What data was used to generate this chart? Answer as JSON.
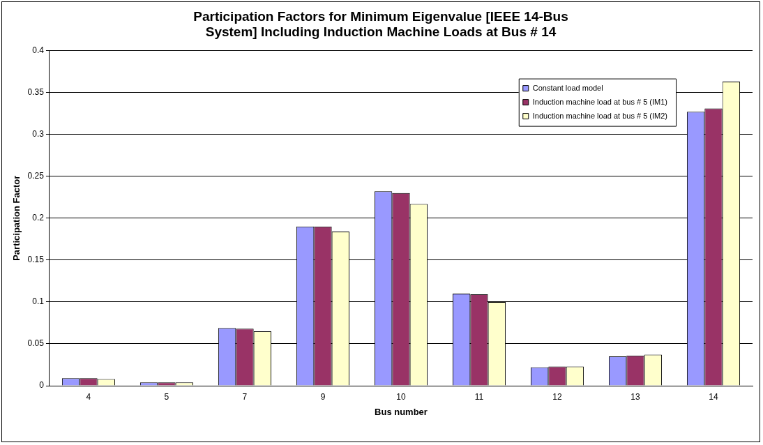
{
  "chart_data": {
    "type": "bar",
    "title": [
      "Participation Factors for Minimum Eigenvalue [IEEE 14-Bus",
      "System] Including Induction Machine Loads at Bus # 14"
    ],
    "xlabel": "Bus number",
    "ylabel": "Participation Factor",
    "categories": [
      "4",
      "5",
      "7",
      "9",
      "10",
      "11",
      "12",
      "13",
      "14"
    ],
    "series": [
      {
        "name": "Constant load model",
        "color": "#9999ff",
        "values": [
          0.009,
          0.004,
          0.069,
          0.19,
          0.232,
          0.11,
          0.022,
          0.035,
          0.327
        ]
      },
      {
        "name": "Induction machine load at bus # 5 (IM1)",
        "color": "#993366",
        "values": [
          0.009,
          0.004,
          0.068,
          0.19,
          0.23,
          0.109,
          0.023,
          0.036,
          0.331
        ]
      },
      {
        "name": "Induction machine load at bus # 5 (IM2)",
        "color": "#ffffcc",
        "values": [
          0.008,
          0.004,
          0.065,
          0.184,
          0.217,
          0.1,
          0.023,
          0.037,
          0.363
        ]
      }
    ],
    "ylim": [
      0,
      0.4
    ],
    "yticks": [
      0,
      0.05,
      0.1,
      0.15,
      0.2,
      0.25,
      0.3,
      0.35,
      0.4
    ],
    "grid": "y",
    "legend": "top right"
  }
}
